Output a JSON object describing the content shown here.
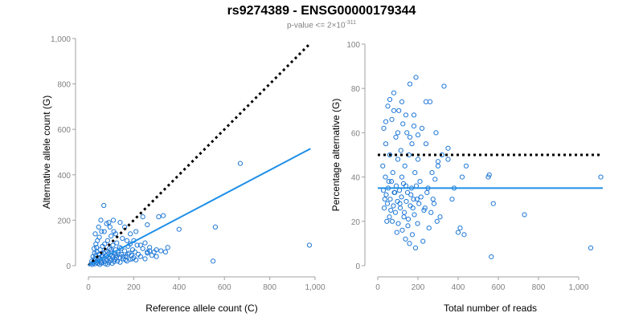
{
  "title": "rs9274389 - ENSG00000179344",
  "subtitle": {
    "prefix": "p-value <= 2×10",
    "exponent": "-311"
  },
  "colors": {
    "points": "#1f78d6",
    "fit": "#1f8fe8",
    "reference": "#000000",
    "axis": "#a0a0a0",
    "ticks": "#808080"
  },
  "chart_data": [
    {
      "type": "scatter",
      "xlabel": "Reference allele count (C)",
      "ylabel": "Alternative allele count (G)",
      "xlim": [
        0,
        1000
      ],
      "ylim": [
        0,
        1000
      ],
      "xticks": [
        "0",
        "200",
        "400",
        "600",
        "800",
        "1,000"
      ],
      "yticks": [
        "0",
        "200",
        "400",
        "600",
        "800",
        "1,000"
      ],
      "xtick_values": [
        0,
        200,
        400,
        600,
        800,
        1000
      ],
      "ytick_values": [
        0,
        200,
        400,
        600,
        800,
        1000
      ],
      "reference_line": {
        "style": "dotted",
        "x": [
          0,
          980
        ],
        "y": [
          0,
          980
        ]
      },
      "fit_line": {
        "style": "solid",
        "x": [
          0,
          980
        ],
        "y": [
          0,
          515
        ]
      },
      "points": [
        [
          18,
          5
        ],
        [
          22,
          12
        ],
        [
          25,
          20
        ],
        [
          28,
          30
        ],
        [
          30,
          8
        ],
        [
          32,
          45
        ],
        [
          35,
          15
        ],
        [
          38,
          60
        ],
        [
          40,
          25
        ],
        [
          42,
          10
        ],
        [
          45,
          35
        ],
        [
          48,
          50
        ],
        [
          50,
          5
        ],
        [
          52,
          70
        ],
        [
          55,
          20
        ],
        [
          58,
          40
        ],
        [
          60,
          12
        ],
        [
          62,
          85
        ],
        [
          65,
          30
        ],
        [
          68,
          55
        ],
        [
          70,
          18
        ],
        [
          72,
          95
        ],
        [
          75,
          8
        ],
        [
          78,
          42
        ],
        [
          80,
          65
        ],
        [
          82,
          25
        ],
        [
          85,
          110
        ],
        [
          88,
          35
        ],
        [
          90,
          15
        ],
        [
          92,
          75
        ],
        [
          95,
          48
        ],
        [
          98,
          22
        ],
        [
          100,
          130
        ],
        [
          102,
          60
        ],
        [
          105,
          10
        ],
        [
          108,
          90
        ],
        [
          110,
          38
        ],
        [
          112,
          150
        ],
        [
          115,
          55
        ],
        [
          118,
          28
        ],
        [
          120,
          70
        ],
        [
          122,
          45
        ],
        [
          125,
          100
        ],
        [
          128,
          20
        ],
        [
          130,
          60
        ],
        [
          135,
          35
        ],
        [
          138,
          80
        ],
        [
          140,
          15
        ],
        [
          145,
          50
        ],
        [
          150,
          120
        ],
        [
          155,
          30
        ],
        [
          160,
          65
        ],
        [
          165,
          40
        ],
        [
          170,
          20
        ],
        [
          175,
          85
        ],
        [
          180,
          55
        ],
        [
          185,
          28
        ],
        [
          190,
          45
        ],
        [
          195,
          70
        ],
        [
          200,
          35
        ],
        [
          205,
          60
        ],
        [
          210,
          25
        ],
        [
          215,
          90
        ],
        [
          220,
          50
        ],
        [
          230,
          40
        ],
        [
          240,
          75
        ],
        [
          250,
          30
        ],
        [
          260,
          55
        ],
        [
          270,
          65
        ],
        [
          280,
          45
        ],
        [
          290,
          60
        ],
        [
          300,
          70
        ],
        [
          310,
          215
        ],
        [
          320,
          65
        ],
        [
          330,
          220
        ],
        [
          340,
          60
        ],
        [
          350,
          80
        ],
        [
          400,
          160
        ],
        [
          550,
          20
        ],
        [
          560,
          170
        ],
        [
          670,
          450
        ],
        [
          975,
          90
        ],
        [
          30,
          140
        ],
        [
          45,
          170
        ],
        [
          55,
          200
        ],
        [
          68,
          265
        ],
        [
          80,
          185
        ],
        [
          95,
          170
        ],
        [
          110,
          200
        ],
        [
          120,
          140
        ],
        [
          140,
          190
        ],
        [
          160,
          170
        ],
        [
          185,
          140
        ],
        [
          210,
          150
        ],
        [
          240,
          215
        ],
        [
          260,
          180
        ],
        [
          200,
          110
        ],
        [
          170,
          110
        ],
        [
          25,
          75
        ],
        [
          33,
          95
        ],
        [
          40,
          110
        ],
        [
          48,
          125
        ],
        [
          58,
          150
        ],
        [
          20,
          40
        ],
        [
          15,
          20
        ],
        [
          12,
          8
        ],
        [
          27,
          55
        ],
        [
          36,
          80
        ],
        [
          44,
          20
        ],
        [
          56,
          12
        ],
        [
          64,
          40
        ],
        [
          74,
          60
        ],
        [
          84,
          5
        ],
        [
          94,
          30
        ],
        [
          104,
          45
        ],
        [
          114,
          18
        ],
        [
          124,
          35
        ],
        [
          134,
          50
        ],
        [
          144,
          75
        ],
        [
          154,
          40
        ],
        [
          164,
          25
        ],
        [
          174,
          50
        ],
        [
          184,
          95
        ],
        [
          194,
          30
        ],
        [
          260,
          60
        ],
        [
          270,
          80
        ],
        [
          300,
          40
        ],
        [
          230,
          90
        ],
        [
          250,
          100
        ],
        [
          90,
          190
        ],
        [
          70,
          150
        ],
        [
          100,
          70
        ]
      ]
    },
    {
      "type": "scatter",
      "xlabel": "Total number of reads",
      "ylabel": "Percentage alternative (G)",
      "xlim": [
        0,
        1120
      ],
      "ylim": [
        0,
        100
      ],
      "xticks": [
        "0",
        "200",
        "400",
        "600",
        "800",
        "1,000"
      ],
      "yticks": [
        "0",
        "20",
        "40",
        "60",
        "80",
        "100"
      ],
      "xtick_values": [
        0,
        200,
        400,
        600,
        800,
        1000
      ],
      "ytick_values": [
        0,
        20,
        40,
        60,
        80,
        100
      ],
      "reference_line": {
        "style": "dotted",
        "x": [
          0,
          1120
        ],
        "y": [
          50,
          50
        ]
      },
      "fit_line": {
        "style": "solid",
        "x": [
          0,
          1120
        ],
        "y": [
          35,
          35
        ]
      },
      "points": [
        [
          25,
          45
        ],
        [
          30,
          62
        ],
        [
          35,
          30
        ],
        [
          40,
          55
        ],
        [
          45,
          20
        ],
        [
          50,
          72
        ],
        [
          55,
          38
        ],
        [
          60,
          50
        ],
        [
          65,
          25
        ],
        [
          70,
          66
        ],
        [
          75,
          42
        ],
        [
          80,
          78
        ],
        [
          85,
          33
        ],
        [
          90,
          58
        ],
        [
          95,
          15
        ],
        [
          100,
          48
        ],
        [
          105,
          70
        ],
        [
          110,
          28
        ],
        [
          115,
          52
        ],
        [
          120,
          40
        ],
        [
          125,
          64
        ],
        [
          130,
          22
        ],
        [
          135,
          45
        ],
        [
          140,
          36
        ],
        [
          145,
          60
        ],
        [
          150,
          18
        ],
        [
          155,
          50
        ],
        [
          160,
          82
        ],
        [
          165,
          32
        ],
        [
          170,
          55
        ],
        [
          175,
          26
        ],
        [
          180,
          68
        ],
        [
          185,
          42
        ],
        [
          190,
          85
        ],
        [
          195,
          30
        ],
        [
          200,
          48
        ],
        [
          210,
          38
        ],
        [
          220,
          62
        ],
        [
          230,
          25
        ],
        [
          240,
          55
        ],
        [
          250,
          35
        ],
        [
          260,
          74
        ],
        [
          270,
          42
        ],
        [
          280,
          28
        ],
        [
          290,
          60
        ],
        [
          300,
          45
        ],
        [
          310,
          22
        ],
        [
          320,
          50
        ],
        [
          330,
          81
        ],
        [
          350,
          53
        ],
        [
          370,
          30
        ],
        [
          380,
          35
        ],
        [
          400,
          15
        ],
        [
          410,
          17
        ],
        [
          420,
          40
        ],
        [
          430,
          14
        ],
        [
          440,
          45
        ],
        [
          550,
          40
        ],
        [
          555,
          41
        ],
        [
          565,
          4
        ],
        [
          575,
          28
        ],
        [
          730,
          23
        ],
        [
          1060,
          8
        ],
        [
          1110,
          40
        ],
        [
          28,
          34
        ],
        [
          32,
          26
        ],
        [
          38,
          40
        ],
        [
          42,
          32
        ],
        [
          48,
          28
        ],
        [
          52,
          35
        ],
        [
          58,
          22
        ],
        [
          62,
          30
        ],
        [
          68,
          38
        ],
        [
          72,
          20
        ],
        [
          78,
          27
        ],
        [
          82,
          33
        ],
        [
          88,
          24
        ],
        [
          92,
          36
        ],
        [
          98,
          29
        ],
        [
          102,
          19
        ],
        [
          108,
          34
        ],
        [
          112,
          26
        ],
        [
          118,
          31
        ],
        [
          122,
          16
        ],
        [
          128,
          37
        ],
        [
          132,
          24
        ],
        [
          138,
          12
        ],
        [
          142,
          29
        ],
        [
          148,
          33
        ],
        [
          152,
          21
        ],
        [
          158,
          10
        ],
        [
          162,
          27
        ],
        [
          168,
          35
        ],
        [
          172,
          14
        ],
        [
          178,
          30
        ],
        [
          182,
          23
        ],
        [
          188,
          8
        ],
        [
          192,
          36
        ],
        [
          198,
          19
        ],
        [
          205,
          28
        ],
        [
          215,
          31
        ],
        [
          225,
          11
        ],
        [
          235,
          26
        ],
        [
          245,
          33
        ],
        [
          255,
          17
        ],
        [
          265,
          24
        ],
        [
          275,
          30
        ],
        [
          285,
          39
        ],
        [
          295,
          20
        ],
        [
          40,
          65
        ],
        [
          60,
          75
        ],
        [
          80,
          70
        ],
        [
          100,
          60
        ],
        [
          120,
          74
        ],
        [
          140,
          68
        ],
        [
          160,
          58
        ],
        [
          180,
          63
        ],
        [
          200,
          59
        ],
        [
          240,
          74
        ],
        [
          300,
          47
        ],
        [
          350,
          48
        ]
      ]
    }
  ]
}
